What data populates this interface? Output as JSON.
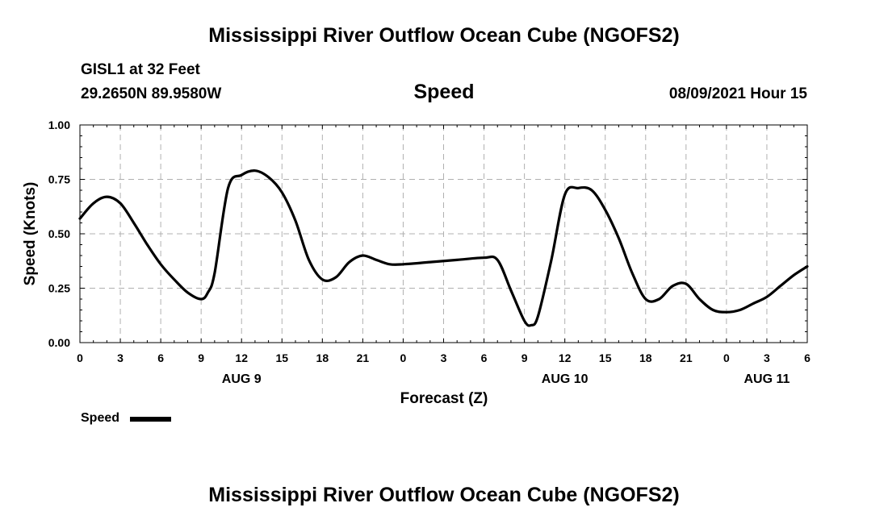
{
  "header": {
    "title_top": "Mississippi River Outflow Ocean Cube (NGOFS2)",
    "station": "GISL1 at 32 Feet",
    "coords": "29.2650N  89.9580W",
    "panel_title": "Speed",
    "datetime": "08/09/2021 Hour 15"
  },
  "footer": {
    "title_bottom": "Mississippi River Outflow Ocean Cube (NGOFS2)"
  },
  "legend": {
    "label": "Speed"
  },
  "chart_data": {
    "type": "line",
    "title": "Speed",
    "xlabel": "Forecast (Z)",
    "ylabel": "Speed (Knots)",
    "ylim": [
      0,
      1
    ],
    "xlim": [
      0,
      54
    ],
    "y_ticks": [
      "0.00",
      "0.25",
      "0.50",
      "0.75",
      "1.00"
    ],
    "y_tick_values": [
      0,
      0.25,
      0.5,
      0.75,
      1.0
    ],
    "x_tick_labels": [
      "0",
      "3",
      "6",
      "9",
      "12",
      "15",
      "18",
      "21",
      "0",
      "3",
      "6",
      "9",
      "12",
      "15",
      "18",
      "21",
      "0",
      "3",
      "6"
    ],
    "date_labels": [
      {
        "text": "AUG 9",
        "hour": 12
      },
      {
        "text": "AUG 10",
        "hour": 36
      },
      {
        "text": "AUG 11",
        "hour": 51
      }
    ],
    "grid": true,
    "series": [
      {
        "name": "Speed",
        "x": [
          0,
          1,
          2,
          3,
          4,
          5,
          6,
          7,
          8,
          9,
          9.5,
          10,
          11,
          12,
          13,
          14,
          15,
          16,
          17,
          18,
          19,
          20,
          21,
          22,
          23,
          24,
          26,
          28,
          30,
          31,
          32,
          33,
          33.5,
          34,
          35,
          36,
          37,
          38,
          39,
          40,
          41,
          42,
          43,
          44,
          45,
          46,
          47,
          48,
          49,
          50,
          51,
          52,
          53,
          54
        ],
        "values": [
          0.57,
          0.64,
          0.67,
          0.64,
          0.55,
          0.45,
          0.36,
          0.29,
          0.23,
          0.2,
          0.23,
          0.32,
          0.71,
          0.77,
          0.79,
          0.76,
          0.69,
          0.56,
          0.38,
          0.29,
          0.3,
          0.37,
          0.4,
          0.38,
          0.36,
          0.36,
          0.37,
          0.38,
          0.39,
          0.38,
          0.24,
          0.1,
          0.08,
          0.12,
          0.38,
          0.68,
          0.71,
          0.7,
          0.61,
          0.48,
          0.32,
          0.2,
          0.2,
          0.26,
          0.27,
          0.2,
          0.15,
          0.14,
          0.15,
          0.18,
          0.21,
          0.26,
          0.31,
          0.35
        ]
      }
    ]
  }
}
